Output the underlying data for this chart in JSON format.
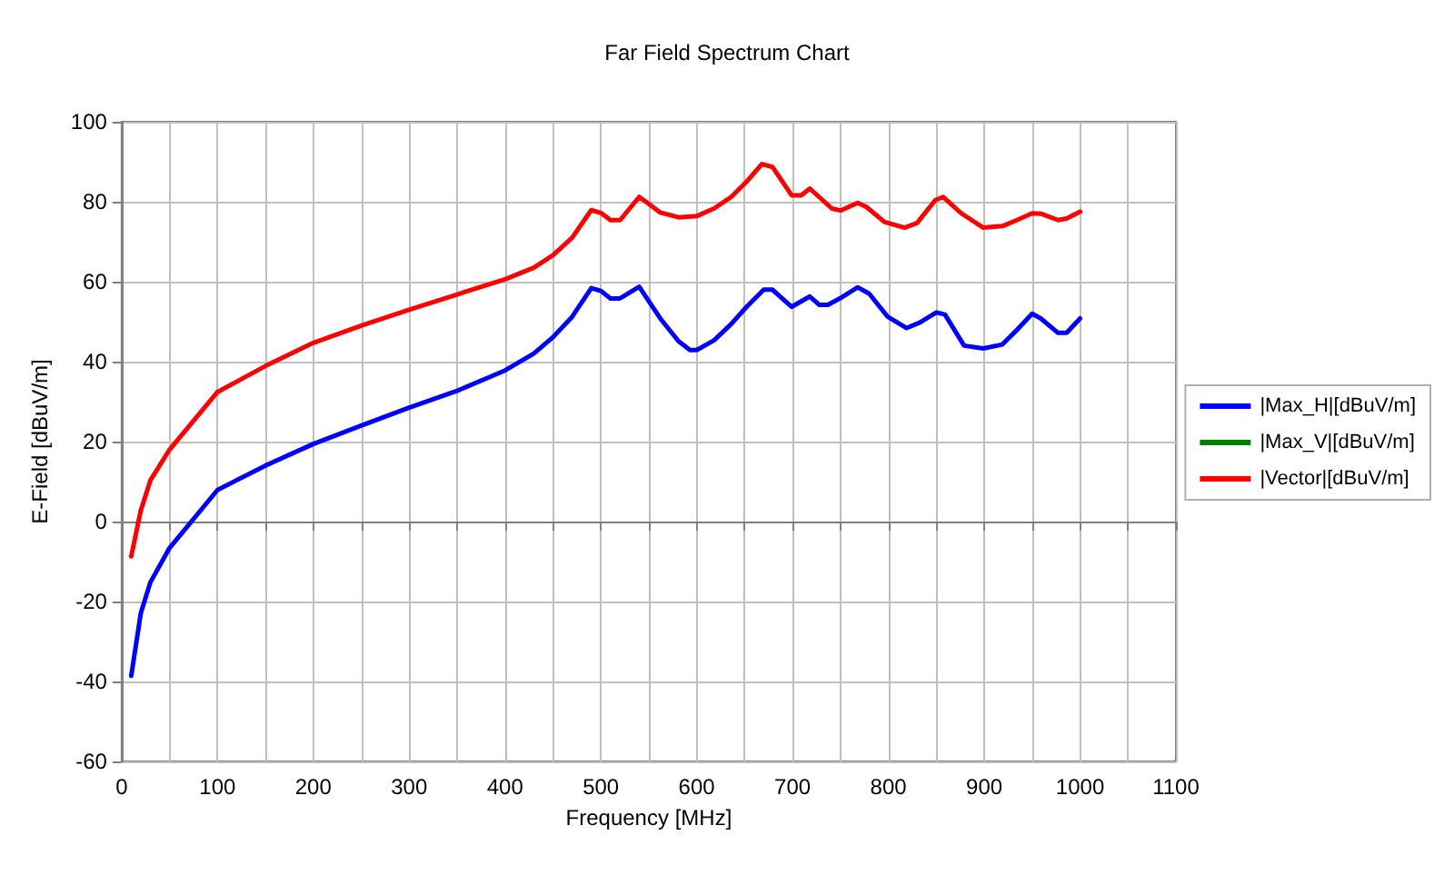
{
  "chart_data": {
    "type": "line",
    "title": "Far Field Spectrum Chart",
    "xlabel": "Frequency [MHz]",
    "ylabel": "E-Field [dBuV/m]",
    "xlim": [
      0,
      1100
    ],
    "ylim": [
      -60,
      100
    ],
    "xticks": [
      0,
      {
        "value": 50,
        "label": null
      },
      100,
      {
        "value": 150,
        "label": null
      },
      200,
      {
        "value": 250,
        "label": null
      },
      300,
      {
        "value": 350,
        "label": null
      },
      400,
      {
        "value": 450,
        "label": null
      },
      500,
      {
        "value": 550,
        "label": null
      },
      600,
      {
        "value": 650,
        "label": null
      },
      700,
      {
        "value": 750,
        "label": null
      },
      800,
      {
        "value": 850,
        "label": null
      },
      900,
      {
        "value": 950,
        "label": null
      },
      1000,
      {
        "value": 1050,
        "label": null
      },
      1100
    ],
    "yticks": [
      -60,
      -40,
      -20,
      0,
      20,
      40,
      60,
      80,
      100
    ],
    "grid": true,
    "legend": "right",
    "marker": "none",
    "line_style": "solid",
    "series": [
      {
        "name": "|Max_H|[dBuV/m]",
        "color": "#0000ff",
        "x": [
          10,
          20,
          30,
          50,
          100,
          150,
          200,
          250,
          300,
          350,
          400,
          430,
          450,
          470,
          490,
          500,
          510,
          520,
          540,
          562,
          581,
          593,
          600,
          618,
          636,
          652,
          670,
          679,
          699,
          718,
          728,
          737,
          750,
          768,
          780,
          799,
          819,
          833,
          850,
          859,
          879,
          899,
          919,
          934,
          950,
          959,
          977,
          986,
          1000
        ],
        "values": [
          -38.6,
          -22.9,
          -15.2,
          -6.6,
          7.9,
          14,
          19.4,
          24,
          28.5,
          32.7,
          37.8,
          42,
          46.1,
          51.2,
          58.4,
          57.7,
          55.8,
          55.8,
          58.7,
          50.8,
          45.1,
          42.9,
          42.9,
          45.3,
          49.4,
          53.7,
          58,
          58,
          53.7,
          56.3,
          54.2,
          54.2,
          55.9,
          58.6,
          57,
          51.3,
          48.4,
          49.8,
          52.3,
          51.8,
          44,
          43.3,
          44.3,
          47.9,
          52,
          50.8,
          47.2,
          47.2,
          50.8
        ]
      },
      {
        "name": "|Max_V|[dBuV/m]",
        "color": "#008000"
      },
      {
        "name": "|Vector|[dBuV/m]",
        "color": "#ff0000",
        "x": [
          10,
          20,
          30,
          50,
          100,
          150,
          200,
          250,
          300,
          350,
          400,
          430,
          450,
          470,
          490,
          500,
          510,
          520,
          540,
          547,
          562,
          581,
          600,
          618,
          636,
          652,
          668,
          679,
          699,
          709,
          718,
          741,
          750,
          768,
          777,
          796,
          817,
          830,
          849,
          857,
          876,
          899,
          919,
          934,
          950,
          959,
          977,
          986,
          1000
        ],
        "values": [
          -8.7,
          2.8,
          10.3,
          18,
          32.4,
          38.9,
          44.7,
          49,
          53,
          56.8,
          60.6,
          63.5,
          66.6,
          71,
          77.9,
          77.2,
          75.4,
          75.4,
          81.2,
          80,
          77.3,
          76.1,
          76.4,
          78.3,
          81.2,
          85,
          89.4,
          88.7,
          81.6,
          81.6,
          83.3,
          78.3,
          77.8,
          79.7,
          78.7,
          74.9,
          73.5,
          74.7,
          80.4,
          81.2,
          77.1,
          73.5,
          73.9,
          75.4,
          77.1,
          77,
          75.4,
          75.8,
          77.5
        ]
      }
    ]
  }
}
